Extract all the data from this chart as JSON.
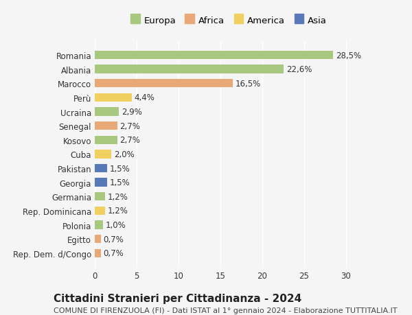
{
  "countries": [
    "Romania",
    "Albania",
    "Marocco",
    "Perù",
    "Ucraina",
    "Senegal",
    "Kosovo",
    "Cuba",
    "Pakistan",
    "Georgia",
    "Germania",
    "Rep. Dominicana",
    "Polonia",
    "Egitto",
    "Rep. Dem. d/Congo"
  ],
  "values": [
    28.5,
    22.6,
    16.5,
    4.4,
    2.9,
    2.7,
    2.7,
    2.0,
    1.5,
    1.5,
    1.2,
    1.2,
    1.0,
    0.7,
    0.7
  ],
  "labels": [
    "28,5%",
    "22,6%",
    "16,5%",
    "4,4%",
    "2,9%",
    "2,7%",
    "2,7%",
    "2,0%",
    "1,5%",
    "1,5%",
    "1,2%",
    "1,2%",
    "1,0%",
    "0,7%",
    "0,7%"
  ],
  "continents": [
    "Europa",
    "Europa",
    "Africa",
    "America",
    "Europa",
    "Africa",
    "Europa",
    "America",
    "Asia",
    "Asia",
    "Europa",
    "America",
    "Europa",
    "Africa",
    "Africa"
  ],
  "colors": {
    "Europa": "#a8c880",
    "Africa": "#e8a878",
    "America": "#f0d060",
    "Asia": "#5878b8"
  },
  "legend_colors": {
    "Europa": "#a8c880",
    "Africa": "#e8a878",
    "America": "#f0d060",
    "Asia": "#5878b8"
  },
  "xlim": [
    0,
    32
  ],
  "xticks": [
    0,
    5,
    10,
    15,
    20,
    25,
    30
  ],
  "title": "Cittadini Stranieri per Cittadinanza - 2024",
  "subtitle": "COMUNE DI FIRENZUOLA (FI) - Dati ISTAT al 1° gennaio 2024 - Elaborazione TUTTITALIA.IT",
  "bg_color": "#f5f5f5",
  "bar_height": 0.6,
  "label_fontsize": 8.5,
  "tick_fontsize": 8.5,
  "title_fontsize": 11,
  "subtitle_fontsize": 8
}
